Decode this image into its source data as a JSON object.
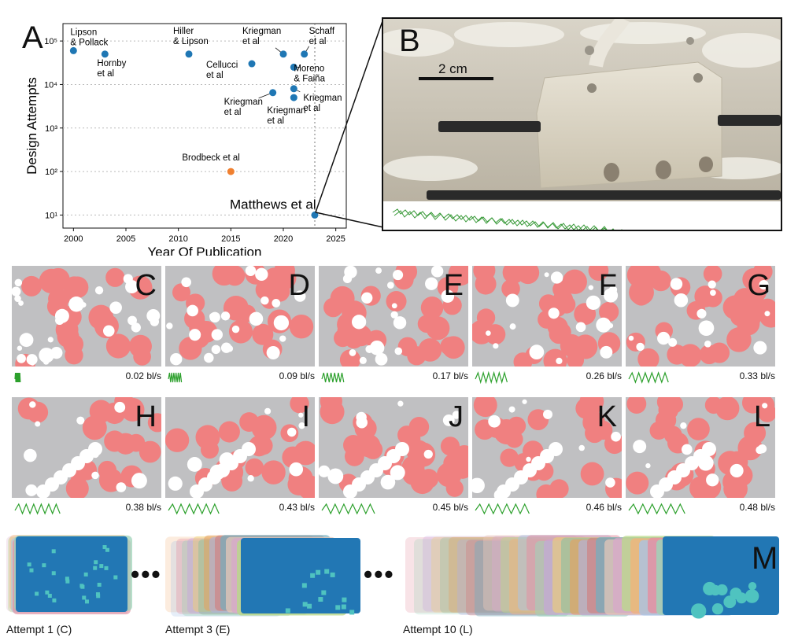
{
  "panel_a": {
    "letter": "A",
    "chart_data": {
      "type": "scatter",
      "xlabel": "Year Of Publication",
      "ylabel": "Design Attempts",
      "xlim": [
        1999,
        2026
      ],
      "ylim_log10": [
        0.7,
        5.4
      ],
      "y_scale": "log",
      "x_ticks": [
        "2000",
        "2005",
        "2010",
        "2015",
        "2020",
        "2025"
      ],
      "y_ticks": [
        "10¹",
        "10²",
        "10³",
        "10⁴",
        "10⁵"
      ],
      "grid": "horizontal dotted",
      "vline_x": 2023,
      "points": [
        {
          "x": 2000,
          "y": 60000,
          "label": "Lipson\n& Pollack",
          "color": "#1f77b4"
        },
        {
          "x": 2003,
          "y": 50000,
          "label": "Hornby\net al",
          "color": "#1f77b4"
        },
        {
          "x": 2011,
          "y": 50000,
          "label": "Hiller\n& Lipson",
          "color": "#1f77b4"
        },
        {
          "x": 2017,
          "y": 30000,
          "label": "Cellucci\net al",
          "color": "#1f77b4"
        },
        {
          "x": 2019,
          "y": 6500,
          "label": "Kriegman\net al",
          "color": "#1f77b4"
        },
        {
          "x": 2020,
          "y": 50000,
          "label": "Kriegman\net al",
          "color": "#1f77b4"
        },
        {
          "x": 2021,
          "y": 5000,
          "label": "Kriegman\net al",
          "color": "#1f77b4"
        },
        {
          "x": 2021,
          "y": 8000,
          "label": "Kriegman\net al",
          "color": "#1f77b4"
        },
        {
          "x": 2021,
          "y": 25000,
          "label": "Moreno\n& Faiña",
          "color": "#1f77b4"
        },
        {
          "x": 2022,
          "y": 50000,
          "label": "Schaff\net al",
          "color": "#1f77b4"
        },
        {
          "x": 2015,
          "y": 100,
          "label": "Brodbeck et al",
          "color": "#f08030"
        },
        {
          "x": 2023,
          "y": 10,
          "label": "Matthews et al",
          "color": "#1f77b4"
        }
      ]
    }
  },
  "panel_b": {
    "letter": "B",
    "scale_label": "2 cm"
  },
  "tiles_row1": [
    {
      "letter": "C",
      "speed": "0.02 bl/s"
    },
    {
      "letter": "D",
      "speed": "0.09 bl/s"
    },
    {
      "letter": "E",
      "speed": "0.17 bl/s"
    },
    {
      "letter": "F",
      "speed": "0.26 bl/s"
    },
    {
      "letter": "G",
      "speed": "0.33 bl/s"
    }
  ],
  "tiles_row2": [
    {
      "letter": "H",
      "speed": "0.38 bl/s"
    },
    {
      "letter": "I",
      "speed": "0.43 bl/s"
    },
    {
      "letter": "J",
      "speed": "0.45 bl/s"
    },
    {
      "letter": "K",
      "speed": "0.46 bl/s"
    },
    {
      "letter": "L",
      "speed": "0.48 bl/s"
    }
  ],
  "panel_m": {
    "letter": "M",
    "ellipsis": "•••",
    "attempts": [
      "Attempt 1 (C)",
      "Attempt 3 (E)",
      "Attempt 10 (L)"
    ]
  },
  "colors": {
    "blue": "#1f77b4",
    "orange": "#f08030",
    "salmon": "#f08080",
    "gray": "#c0c0c2",
    "green": "#2ca02c"
  }
}
